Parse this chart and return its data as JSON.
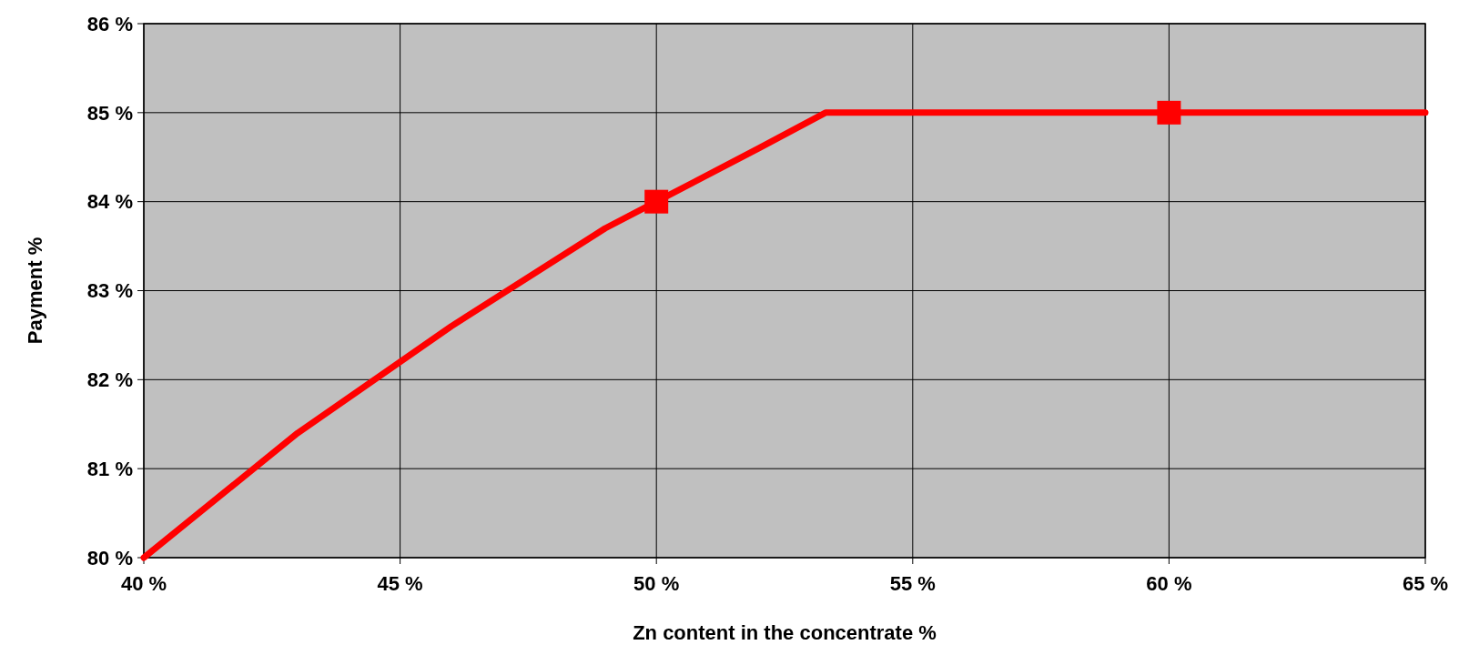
{
  "chart_data": {
    "type": "line",
    "xlabel": "Zn content in the concentrate %",
    "ylabel": "Payment %",
    "xlim": [
      40,
      65
    ],
    "ylim": [
      80,
      86
    ],
    "xticks": [
      {
        "value": 40,
        "label": "40 %"
      },
      {
        "value": 45,
        "label": "45 %"
      },
      {
        "value": 50,
        "label": "50 %"
      },
      {
        "value": 55,
        "label": "55 %"
      },
      {
        "value": 60,
        "label": "60 %"
      },
      {
        "value": 65,
        "label": "65 %"
      }
    ],
    "yticks": [
      {
        "value": 80,
        "label": "80 %"
      },
      {
        "value": 81,
        "label": "81 %"
      },
      {
        "value": 82,
        "label": "82 %"
      },
      {
        "value": 83,
        "label": "83 %"
      },
      {
        "value": 84,
        "label": "84 %"
      },
      {
        "value": 85,
        "label": "85 %"
      },
      {
        "value": 86,
        "label": "86 %"
      }
    ],
    "grid": true,
    "series": [
      {
        "color": "#ff0000",
        "marker": "none",
        "x": [
          40,
          43,
          46,
          49,
          50,
          52,
          53.3,
          65
        ],
        "values": [
          80,
          81.4,
          82.6,
          83.7,
          84,
          84.6,
          85,
          85
        ]
      },
      {
        "type": "scatter",
        "color": "#ff0000",
        "marker": "square",
        "x": [
          50,
          60
        ],
        "values": [
          84,
          85
        ]
      }
    ]
  }
}
